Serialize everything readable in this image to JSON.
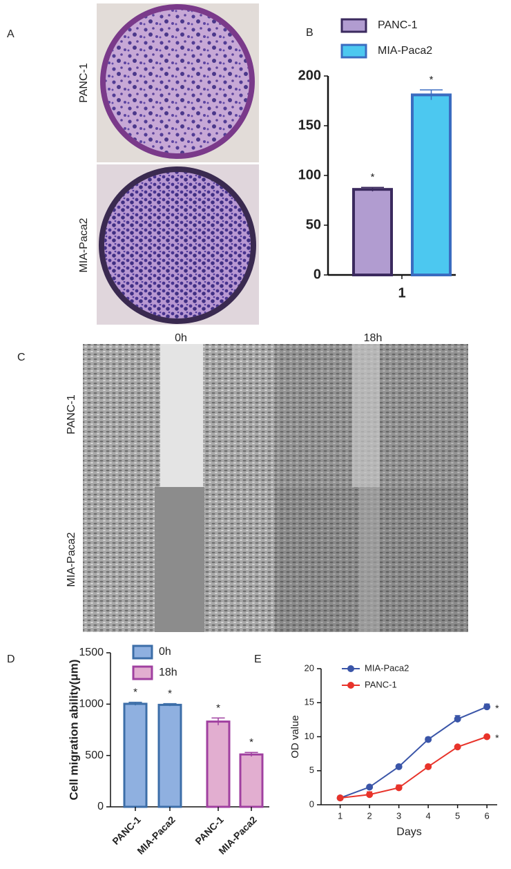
{
  "panel_labels": [
    "A",
    "B",
    "C",
    "D",
    "E"
  ],
  "figure_a": {
    "row_labels": [
      "PANC-1",
      "MIA-Paca2"
    ]
  },
  "figure_c": {
    "column_labels": [
      "0h",
      "18h"
    ],
    "row_labels": [
      "PANC-1",
      "MIA-Paca2"
    ]
  },
  "chart_data": [
    {
      "type": "bar",
      "categories": [
        "1"
      ],
      "series": [
        {
          "name": "PANC-1",
          "color": "#b19cd0",
          "edge_color": "#3b2a5e",
          "values": [
            86
          ],
          "errors": [
            2
          ],
          "significance": [
            "*"
          ]
        },
        {
          "name": "MIA-Paca2",
          "color": "#4cc8f0",
          "edge_color": "#3a6cc0",
          "values": [
            181
          ],
          "errors": [
            5
          ],
          "significance": [
            "*"
          ]
        }
      ],
      "ylim": [
        0,
        200
      ],
      "yticks": [
        0,
        50,
        100,
        150,
        200
      ],
      "grid": false
    },
    {
      "type": "bar",
      "y_label": "Cell migration ability(μm)",
      "categories": [
        "PANC-1",
        "MIA-Paca2",
        "PANC-1",
        "MIA-Paca2"
      ],
      "series": [
        {
          "name": "0h",
          "color": "#8fb0e0",
          "edge_color": "#3c6ea8",
          "values": [
            1003,
            993,
            null,
            null
          ],
          "errors": [
            15,
            12,
            null,
            null
          ],
          "significance": [
            "*",
            "*",
            null,
            null
          ]
        },
        {
          "name": "18h",
          "color": "#e2aed0",
          "edge_color": "#a040a0",
          "values": [
            null,
            null,
            830,
            510
          ],
          "errors": [
            null,
            null,
            35,
            20
          ],
          "significance": [
            null,
            null,
            "*",
            "*"
          ]
        }
      ],
      "ylim": [
        0,
        1500
      ],
      "yticks": [
        0,
        500,
        1000,
        1500
      ],
      "grid": false
    },
    {
      "type": "line",
      "x_label": "Days",
      "y_label": "OD value",
      "x": [
        1,
        2,
        3,
        4,
        5,
        6
      ],
      "series": [
        {
          "name": "MIA-Paca2",
          "color": "#3a55a8",
          "values": [
            1.0,
            2.6,
            5.6,
            9.6,
            12.6,
            14.4
          ],
          "errors": [
            0.1,
            0.2,
            0.2,
            0.3,
            0.5,
            0.4
          ],
          "significance": [
            null,
            null,
            null,
            null,
            null,
            "*"
          ]
        },
        {
          "name": "PANC-1",
          "color": "#e8332a",
          "values": [
            1.0,
            1.5,
            2.5,
            5.6,
            8.5,
            10.0
          ],
          "errors": [
            0.1,
            0.4,
            0.4,
            0.2,
            0.2,
            0.2
          ],
          "significance": [
            null,
            null,
            null,
            null,
            null,
            "*"
          ]
        }
      ],
      "xlim": [
        0.35,
        6.35
      ],
      "xticks": [
        1,
        2,
        3,
        4,
        5,
        6
      ],
      "ylim": [
        0,
        20
      ],
      "yticks": [
        0,
        5,
        10,
        15,
        20
      ],
      "grid": false
    }
  ]
}
